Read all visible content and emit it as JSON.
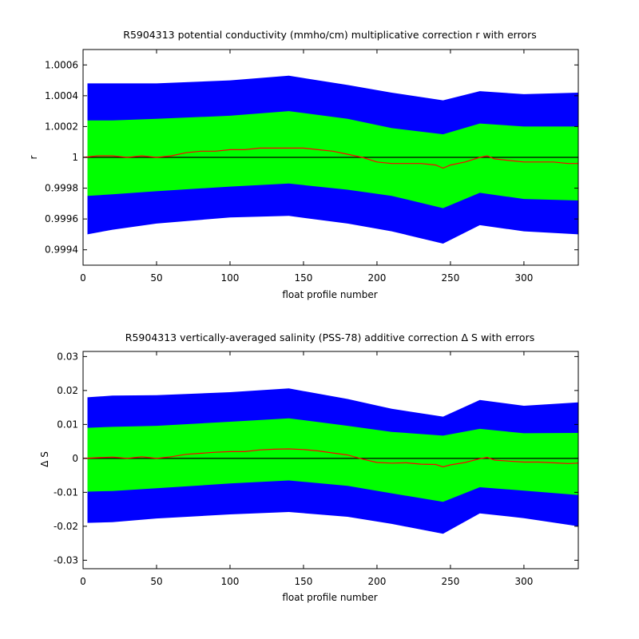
{
  "chart_data": [
    {
      "type": "line",
      "title": "R5904313 potential conductivity (mmho/cm) multiplicative correction r with errors",
      "xlabel": "float profile number",
      "ylabel": "r",
      "xlim": [
        0,
        337
      ],
      "ylim": [
        0.9993,
        1.0007
      ],
      "xticks": [
        0,
        50,
        100,
        150,
        200,
        250,
        300
      ],
      "xtick_labels": [
        "0",
        "50",
        "100",
        "150",
        "200",
        "250",
        "300"
      ],
      "yticks": [
        0.9994,
        0.9996,
        0.9998,
        1.0,
        1.0002,
        1.0004,
        1.0006
      ],
      "ytick_labels": [
        "0.9994",
        "0.9996",
        "0.9998",
        "1",
        "1.0002",
        "1.0004",
        "1.0006"
      ],
      "reference_line": 1.0,
      "colors": {
        "outer_band": "#0000ff",
        "inner_band": "#00ff00",
        "correction": "#ff0000",
        "reference": "#000000"
      },
      "envelope_x": [
        3,
        20,
        50,
        100,
        140,
        180,
        210,
        245,
        270,
        300,
        337
      ],
      "outer_upper": [
        1.00048,
        1.00048,
        1.00048,
        1.0005,
        1.00053,
        1.00047,
        1.00042,
        1.00037,
        1.00043,
        1.00041,
        1.00042
      ],
      "inner_upper": [
        1.00024,
        1.00024,
        1.00025,
        1.00027,
        1.0003,
        1.00025,
        1.00019,
        1.00015,
        1.00022,
        1.0002,
        1.0002
      ],
      "inner_lower": [
        0.99975,
        0.99976,
        0.99978,
        0.99981,
        0.99983,
        0.99979,
        0.99975,
        0.99967,
        0.99977,
        0.99973,
        0.99972
      ],
      "outer_lower": [
        0.9995,
        0.99953,
        0.99957,
        0.99961,
        0.99962,
        0.99957,
        0.99952,
        0.99944,
        0.99956,
        0.99952,
        0.9995
      ],
      "series": [
        {
          "x": [
            0,
            10,
            20,
            30,
            40,
            50,
            60,
            70,
            80,
            90,
            100,
            110,
            120,
            130,
            140,
            150,
            160,
            170,
            180,
            190,
            200,
            210,
            220,
            230,
            240,
            245,
            250,
            260,
            270,
            275,
            280,
            290,
            300,
            310,
            320,
            330,
            337
          ],
          "values": [
            1.0,
            1.00001,
            1.00001,
            1.0,
            1.00001,
            1.0,
            1.00001,
            1.00003,
            1.00004,
            1.00004,
            1.00005,
            1.00005,
            1.00006,
            1.00006,
            1.00006,
            1.00006,
            1.00005,
            1.00004,
            1.00002,
            1.0,
            0.99997,
            0.99996,
            0.99996,
            0.99996,
            0.99995,
            0.99993,
            0.99995,
            0.99997,
            1.0,
            1.00001,
            0.99999,
            0.99998,
            0.99997,
            0.99997,
            0.99997,
            0.99996,
            0.99996
          ]
        }
      ]
    },
    {
      "type": "line",
      "title": "R5904313 vertically-averaged salinity (PSS-78) additive correction Δ S with errors",
      "xlabel": "float profile number",
      "ylabel": "Δ S",
      "xlim": [
        0,
        337
      ],
      "ylim": [
        -0.0325,
        0.0315
      ],
      "xticks": [
        0,
        50,
        100,
        150,
        200,
        250,
        300
      ],
      "xtick_labels": [
        "0",
        "50",
        "100",
        "150",
        "200",
        "250",
        "300"
      ],
      "yticks": [
        -0.03,
        -0.02,
        -0.01,
        0,
        0.01,
        0.02,
        0.03
      ],
      "ytick_labels": [
        "-0.03",
        "-0.02",
        "-0.01",
        "0",
        "0.01",
        "0.02",
        "0.03"
      ],
      "reference_line": 0,
      "colors": {
        "outer_band": "#0000ff",
        "inner_band": "#00ff00",
        "correction": "#ff0000",
        "reference": "#000000"
      },
      "envelope_x": [
        3,
        20,
        50,
        100,
        140,
        180,
        210,
        245,
        270,
        300,
        337
      ],
      "outer_upper": [
        0.018,
        0.0185,
        0.0186,
        0.0195,
        0.0206,
        0.0175,
        0.0146,
        0.0123,
        0.0172,
        0.0155,
        0.0165
      ],
      "inner_upper": [
        0.009,
        0.0093,
        0.0096,
        0.0108,
        0.0118,
        0.0096,
        0.0078,
        0.0067,
        0.0087,
        0.0074,
        0.0075
      ],
      "inner_lower": [
        -0.0098,
        -0.0096,
        -0.0088,
        -0.0074,
        -0.0065,
        -0.0081,
        -0.0103,
        -0.0128,
        -0.0085,
        -0.0095,
        -0.0108
      ],
      "outer_lower": [
        -0.019,
        -0.0188,
        -0.0177,
        -0.0165,
        -0.0158,
        -0.0172,
        -0.0193,
        -0.0222,
        -0.0162,
        -0.0176,
        -0.02
      ],
      "series": [
        {
          "x": [
            0,
            10,
            20,
            30,
            40,
            50,
            60,
            70,
            80,
            90,
            100,
            110,
            120,
            130,
            140,
            150,
            160,
            170,
            180,
            190,
            200,
            210,
            220,
            230,
            240,
            245,
            250,
            260,
            270,
            275,
            280,
            290,
            300,
            310,
            320,
            330,
            337
          ],
          "values": [
            0.0,
            0.0002,
            0.0004,
            0.0,
            0.0005,
            0.0,
            0.0005,
            0.0012,
            0.0015,
            0.0018,
            0.002,
            0.002,
            0.0025,
            0.0027,
            0.0028,
            0.0026,
            0.0022,
            0.0016,
            0.001,
            -0.0002,
            -0.0012,
            -0.0014,
            -0.0013,
            -0.0017,
            -0.0018,
            -0.0025,
            -0.0019,
            -0.0012,
            -0.0001,
            0.0003,
            -0.0005,
            -0.0008,
            -0.0011,
            -0.0011,
            -0.0013,
            -0.0015,
            -0.0014
          ]
        }
      ]
    }
  ]
}
